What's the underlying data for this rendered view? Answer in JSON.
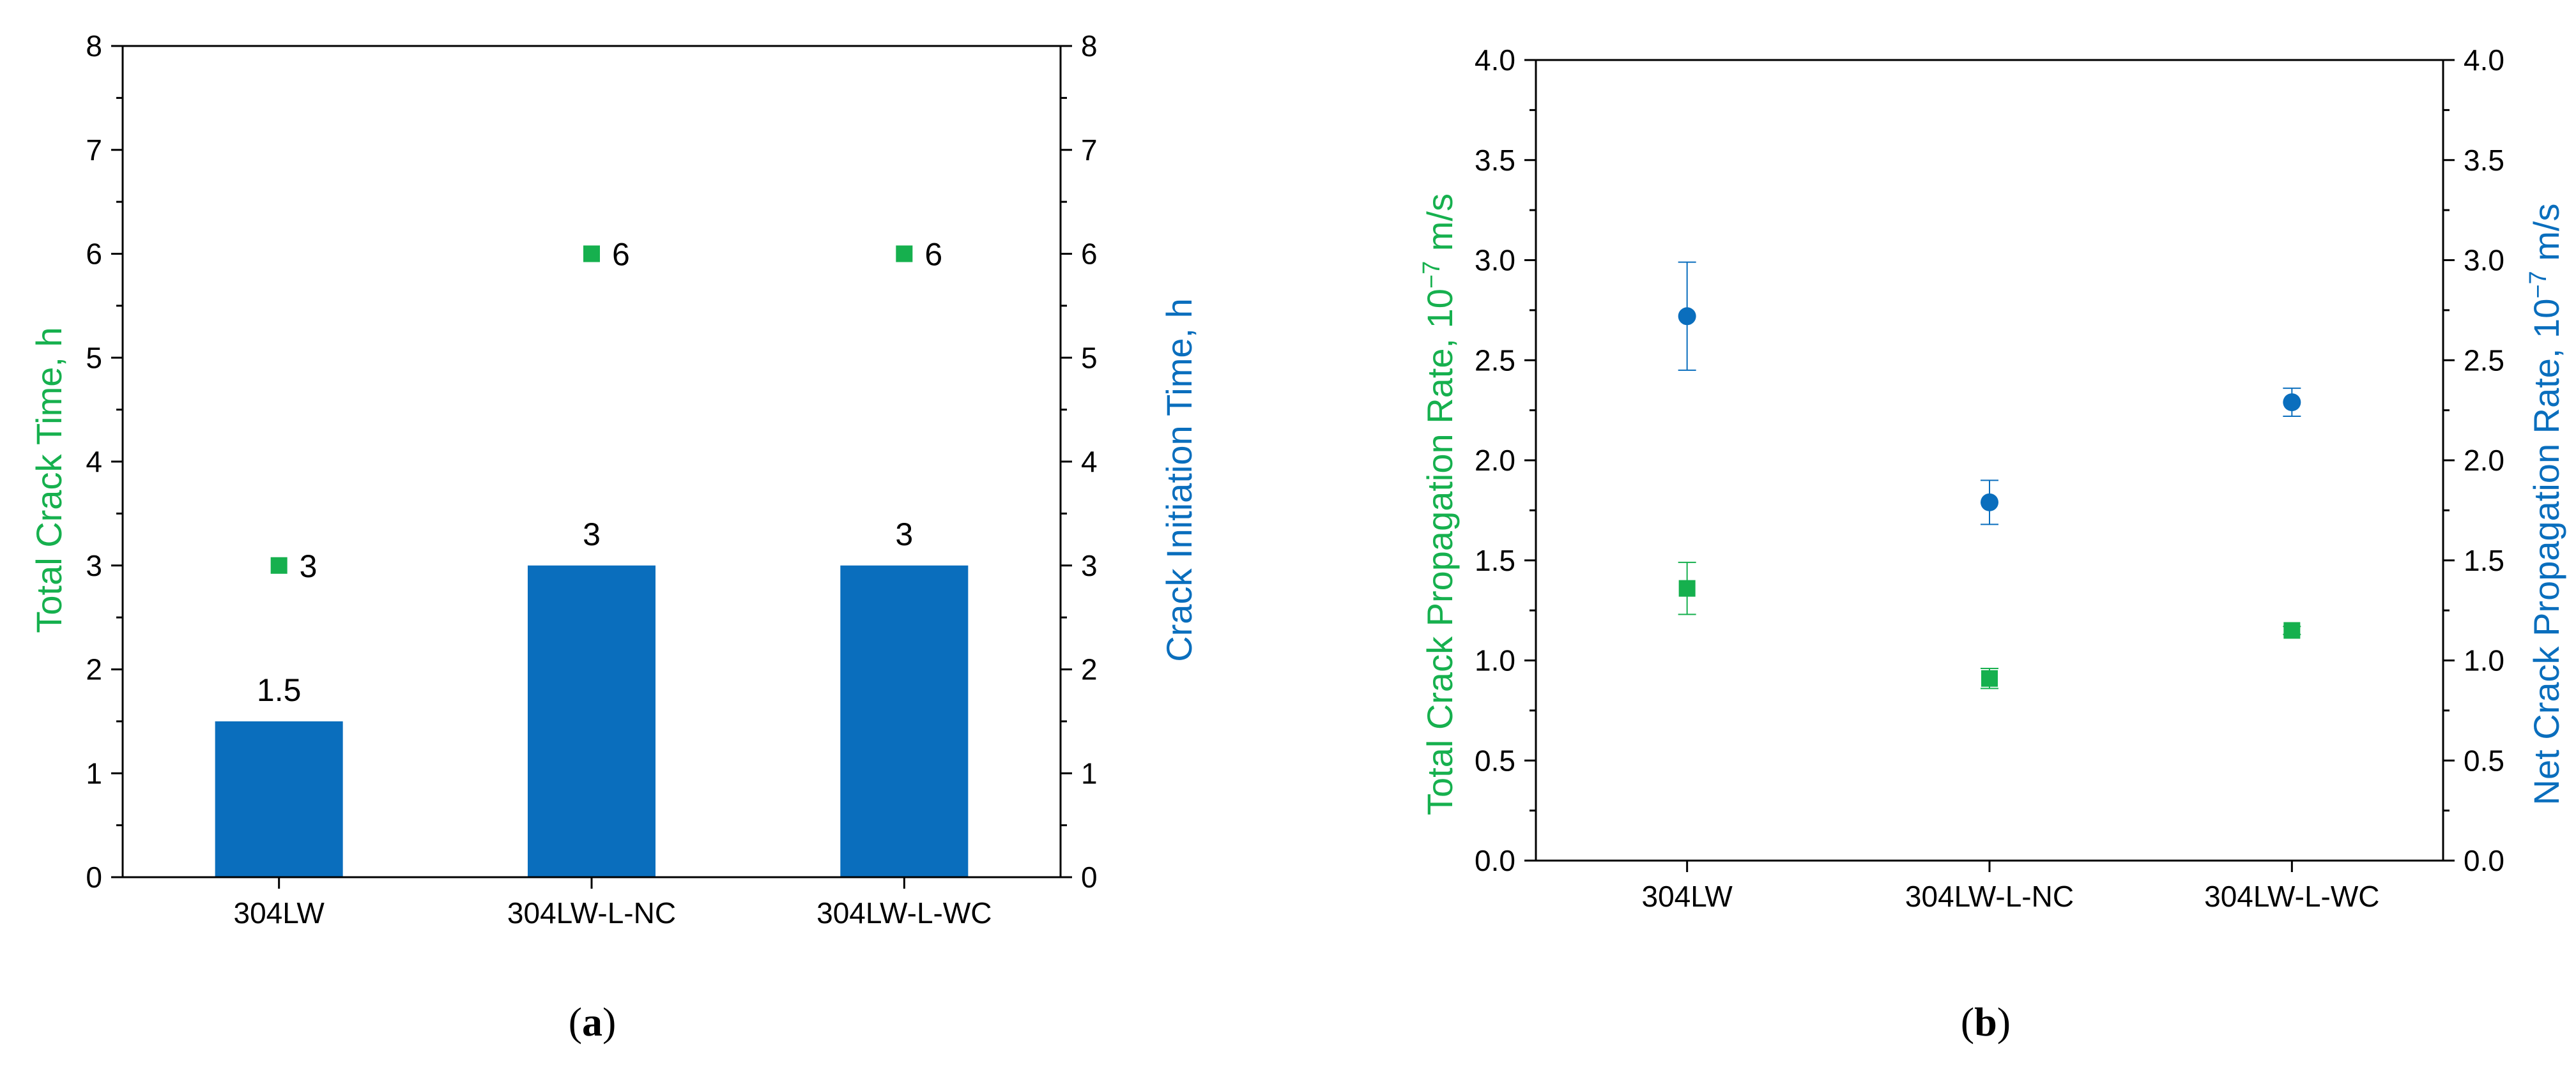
{
  "colors": {
    "green": "#16b04e",
    "blue": "#0a6ebd",
    "axis": "#000000"
  },
  "chart_data": [
    {
      "type": "bar",
      "caption": "a",
      "categories": [
        "304LW",
        "304LW-L-NC",
        "304LW-L-WC"
      ],
      "ylim": [
        0,
        8
      ],
      "y_ticks": [
        "0",
        "1",
        "2",
        "3",
        "4",
        "5",
        "6",
        "7",
        "8"
      ],
      "y2_ticks": [
        "0",
        "1",
        "2",
        "3",
        "4",
        "5",
        "6",
        "7",
        "8"
      ],
      "ylabel": "Total Crack Time, h",
      "y2label": "Crack Initiation Time, h",
      "grid": false,
      "series": [
        {
          "name": "Total Crack Time, h",
          "kind": "scatter",
          "axis": "left",
          "values": [
            3,
            6,
            6
          ],
          "labels": [
            "3",
            "6",
            "6"
          ]
        },
        {
          "name": "Crack Initiation Time, h",
          "kind": "bar",
          "axis": "right",
          "values": [
            1.5,
            3,
            3
          ],
          "labels": [
            "1.5",
            "3",
            "3"
          ]
        }
      ]
    },
    {
      "type": "scatter",
      "caption": "b",
      "categories": [
        "304LW",
        "304LW-L-NC",
        "304LW-L-WC"
      ],
      "ylim": [
        0,
        4
      ],
      "y_ticks": [
        "0.0",
        "0.5",
        "1.0",
        "1.5",
        "2.0",
        "2.5",
        "3.0",
        "3.5",
        "4.0"
      ],
      "y2_ticks": [
        "0.0",
        "0.5",
        "1.0",
        "1.5",
        "2.0",
        "2.5",
        "3.0",
        "3.5",
        "4.0"
      ],
      "ylabel": "Total Crack Propagation Rate, 10",
      "y2label": "Net Crack Propagation Rate, 10",
      "label_exponent": "−7",
      "label_unit": " m/s",
      "grid": false,
      "series": [
        {
          "name": "Total Crack Propagation Rate",
          "marker": "square",
          "axis": "left",
          "values": [
            1.36,
            0.91,
            1.15
          ],
          "errors": [
            0.13,
            0.05,
            0.02
          ]
        },
        {
          "name": "Net Crack Propagation Rate",
          "marker": "circle",
          "axis": "right",
          "values": [
            2.72,
            1.79,
            2.29
          ],
          "errors": [
            0.27,
            0.11,
            0.07
          ]
        }
      ]
    }
  ]
}
